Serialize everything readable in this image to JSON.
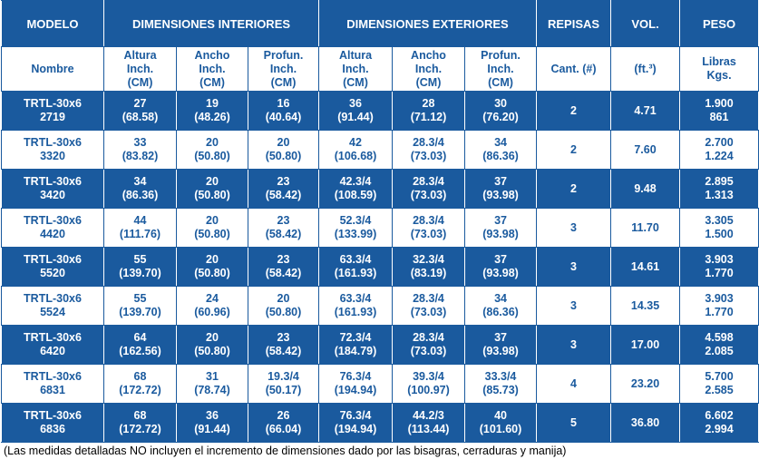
{
  "table": {
    "header_top": [
      "MODELO",
      "DIMENSIONES INTERIORES",
      "DIMENSIONES EXTERIORES",
      "REPISAS",
      "VOL.",
      "PESO"
    ],
    "header_sub": [
      [
        "Nombre"
      ],
      [
        "Altura",
        "Inch.",
        "(CM)"
      ],
      [
        "Ancho",
        "Inch.",
        "(CM)"
      ],
      [
        "Profun.",
        "Inch.",
        "(CM)"
      ],
      [
        "Altura",
        "Inch.",
        "(CM)"
      ],
      [
        "Ancho",
        "Inch.",
        "(CM)"
      ],
      [
        "Profun.",
        "Inch.",
        "(CM)"
      ],
      [
        "Cant. (#)"
      ],
      [
        "(ft.³)"
      ],
      [
        "Libras",
        "Kgs."
      ]
    ],
    "rows": [
      [
        [
          "TRTL-30x6",
          "2719"
        ],
        [
          "27",
          "(68.58)"
        ],
        [
          "19",
          "(48.26)"
        ],
        [
          "16",
          "(40.64)"
        ],
        [
          "36",
          "(91.44)"
        ],
        [
          "28",
          "(71.12)"
        ],
        [
          "30",
          "(76.20)"
        ],
        [
          "2"
        ],
        [
          "4.71"
        ],
        [
          "1.900",
          "861"
        ]
      ],
      [
        [
          "TRTL-30x6",
          "3320"
        ],
        [
          "33",
          "(83.82)"
        ],
        [
          "20",
          "(50.80)"
        ],
        [
          "20",
          "(50.80)"
        ],
        [
          "42",
          "(106.68)"
        ],
        [
          "28.3/4",
          "(73.03)"
        ],
        [
          "34",
          "(86.36)"
        ],
        [
          "2"
        ],
        [
          "7.60"
        ],
        [
          "2.700",
          "1.224"
        ]
      ],
      [
        [
          "TRTL-30x6",
          "3420"
        ],
        [
          "34",
          "(86.36)"
        ],
        [
          "20",
          "(50.80)"
        ],
        [
          "23",
          "(58.42)"
        ],
        [
          "42.3/4",
          "(108.59)"
        ],
        [
          "28.3/4",
          "(73.03)"
        ],
        [
          "37",
          "(93.98)"
        ],
        [
          "2"
        ],
        [
          "9.48"
        ],
        [
          "2.895",
          "1.313"
        ]
      ],
      [
        [
          "TRTL-30x6",
          "4420"
        ],
        [
          "44",
          "(111.76)"
        ],
        [
          "20",
          "(50.80)"
        ],
        [
          "23",
          "(58.42)"
        ],
        [
          "52.3/4",
          "(133.99)"
        ],
        [
          "28.3/4",
          "(73.03)"
        ],
        [
          "37",
          "(93.98)"
        ],
        [
          "3"
        ],
        [
          "11.70"
        ],
        [
          "3.305",
          "1.500"
        ]
      ],
      [
        [
          "TRTL-30x6",
          "5520"
        ],
        [
          "55",
          "(139.70)"
        ],
        [
          "20",
          "(50.80)"
        ],
        [
          "23",
          "(58.42)"
        ],
        [
          "63.3/4",
          "(161.93)"
        ],
        [
          "32.3/4",
          "(83.19)"
        ],
        [
          "37",
          "(93.98)"
        ],
        [
          "3"
        ],
        [
          "14.61"
        ],
        [
          "3.903",
          "1.770"
        ]
      ],
      [
        [
          "TRTL-30x6",
          "5524"
        ],
        [
          "55",
          "(139.70)"
        ],
        [
          "24",
          "(60.96)"
        ],
        [
          "20",
          "(50.80)"
        ],
        [
          "63.3/4",
          "(161.93)"
        ],
        [
          "28.3/4",
          "(73.03)"
        ],
        [
          "34",
          "(86.36)"
        ],
        [
          "3"
        ],
        [
          "14.35"
        ],
        [
          "3.903",
          "1.770"
        ]
      ],
      [
        [
          "TRTL-30x6",
          "6420"
        ],
        [
          "64",
          "(162.56)"
        ],
        [
          "20",
          "(50.80)"
        ],
        [
          "23",
          "(58.42)"
        ],
        [
          "72.3/4",
          "(184.79)"
        ],
        [
          "28.3/4",
          "(73.03)"
        ],
        [
          "37",
          "(93.98)"
        ],
        [
          "3"
        ],
        [
          "17.00"
        ],
        [
          "4.598",
          "2.085"
        ]
      ],
      [
        [
          "TRTL-30x6",
          "6831"
        ],
        [
          "68",
          "(172.72)"
        ],
        [
          "31",
          "(78.74)"
        ],
        [
          "19.3/4",
          "(50.17)"
        ],
        [
          "76.3/4",
          "(194.94)"
        ],
        [
          "39.3/4",
          "(100.97)"
        ],
        [
          "33.3/4",
          "(85.73)"
        ],
        [
          "4"
        ],
        [
          "23.20"
        ],
        [
          "5.700",
          "2.585"
        ]
      ],
      [
        [
          "TRTL-30x6",
          "6836"
        ],
        [
          "68",
          "(172.72)"
        ],
        [
          "36",
          "(91.44)"
        ],
        [
          "26",
          "(66.04)"
        ],
        [
          "76.3/4",
          "(194.94)"
        ],
        [
          "44.2/3",
          "(113.44)"
        ],
        [
          "40",
          "(101.60)"
        ],
        [
          "5"
        ],
        [
          "36.80"
        ],
        [
          "6.602",
          "2.994"
        ]
      ]
    ]
  },
  "footnote": "(Las medidas detalladas NO incluyen el incremento de dimensiones dado por las bisagras, cerraduras y manija)"
}
